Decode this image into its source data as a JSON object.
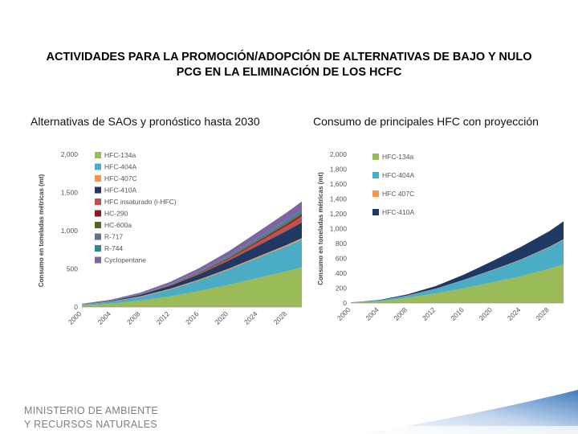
{
  "slide": {
    "title_line1": "ACTIVIDADES PARA LA PROMOCIÓN/ADOPCIÓN DE ALTERNATIVAS DE BAJO Y NULO",
    "title_line2": "PCG EN LA ELIMINACIÓN DE LOS HCFC",
    "subtitle_left": "Alternativas de SAOs y pronóstico hasta 2030",
    "subtitle_right": "Consumo de principales HFC con proyección",
    "footer_line1": "MINISTERIO DE AMBIENTE",
    "footer_line2": "Y RECURSOS NATURALES"
  },
  "chart_data": [
    {
      "type": "area",
      "stacked": true,
      "title": "Alternativas de SAOs y pronóstico hasta 2030",
      "ylabel": "Consumo en toneladas métricas (mt)",
      "xlabel": "",
      "x": [
        2000,
        2004,
        2008,
        2012,
        2016,
        2020,
        2024,
        2028,
        2030
      ],
      "xticks": [
        2000,
        2004,
        2008,
        2012,
        2016,
        2020,
        2024,
        2028
      ],
      "xtick_labels": [
        "2000",
        "2004",
        "2008",
        "2012",
        "2016",
        "2020",
        "2024",
        "2028"
      ],
      "yticks": [
        0,
        500,
        1000,
        1500,
        2000
      ],
      "ytick_labels": [
        "0",
        "500",
        "1,000",
        "1,500",
        "2,000"
      ],
      "ylim": [
        0,
        2000
      ],
      "series": [
        {
          "name": "HFC-134a",
          "color": "#9bbb59",
          "values": [
            20,
            45,
            85,
            140,
            210,
            290,
            380,
            470,
            520
          ]
        },
        {
          "name": "HFC-404A",
          "color": "#4bacc6",
          "values": [
            10,
            25,
            50,
            90,
            140,
            200,
            265,
            330,
            365
          ]
        },
        {
          "name": "HFC-407C",
          "color": "#f79646",
          "values": [
            2,
            4,
            6,
            8,
            10,
            12,
            14,
            16,
            17
          ]
        },
        {
          "name": "HFC-410A",
          "color": "#1f3864",
          "values": [
            3,
            8,
            20,
            40,
            70,
            105,
            145,
            185,
            205
          ]
        },
        {
          "name": "HFC insaturado (i-HFC)",
          "color": "#c0504d",
          "values": [
            0,
            0,
            0,
            2,
            8,
            20,
            40,
            65,
            80
          ]
        },
        {
          "name": "HC-290",
          "color": "#8b1a1a",
          "values": [
            0,
            0,
            1,
            3,
            6,
            10,
            15,
            20,
            23
          ]
        },
        {
          "name": "HC-600a",
          "color": "#4f6228",
          "values": [
            0,
            1,
            2,
            4,
            6,
            9,
            12,
            15,
            17
          ]
        },
        {
          "name": "R-717",
          "color": "#5f6f8f",
          "values": [
            2,
            4,
            6,
            9,
            13,
            18,
            23,
            28,
            31
          ]
        },
        {
          "name": "R-744",
          "color": "#31859c",
          "values": [
            0,
            0,
            1,
            3,
            6,
            10,
            14,
            18,
            20
          ]
        },
        {
          "name": "Cyclopentane",
          "color": "#8064a2",
          "values": [
            5,
            10,
            18,
            28,
            40,
            55,
            75,
            95,
            105
          ]
        }
      ]
    },
    {
      "type": "area",
      "stacked": true,
      "title": "Consumo de principales HFC con proyección",
      "ylabel": "Consumo en toneladas métricas (mt)",
      "xlabel": "",
      "x": [
        2000,
        2004,
        2008,
        2012,
        2016,
        2020,
        2024,
        2028,
        2030
      ],
      "xticks": [
        2000,
        2004,
        2008,
        2012,
        2016,
        2020,
        2024,
        2028
      ],
      "xtick_labels": [
        "2000",
        "2004",
        "2008",
        "2012",
        "2016",
        "2020",
        "2024",
        "2028"
      ],
      "yticks": [
        0,
        200,
        400,
        600,
        800,
        1000,
        1200,
        1400,
        1600,
        1800,
        2000
      ],
      "ytick_labels": [
        "0",
        "200",
        "400",
        "600",
        "800",
        "1,000",
        "1,200",
        "1,400",
        "1,600",
        "1,800",
        "2,000"
      ],
      "ylim": [
        0,
        2000
      ],
      "series": [
        {
          "name": "HFC-134a",
          "color": "#9bbb59",
          "values": [
            5,
            25,
            70,
            130,
            200,
            280,
            360,
            460,
            520
          ]
        },
        {
          "name": "HFC-404A",
          "color": "#4bacc6",
          "values": [
            2,
            10,
            30,
            60,
            110,
            160,
            220,
            290,
            330
          ]
        },
        {
          "name": "HFC 407C",
          "color": "#f79646",
          "values": [
            0,
            1,
            2,
            3,
            4,
            5,
            6,
            7,
            8
          ]
        },
        {
          "name": "HFC-410A",
          "color": "#1f3864",
          "values": [
            1,
            5,
            15,
            35,
            70,
            120,
            170,
            210,
            240
          ]
        }
      ]
    }
  ]
}
